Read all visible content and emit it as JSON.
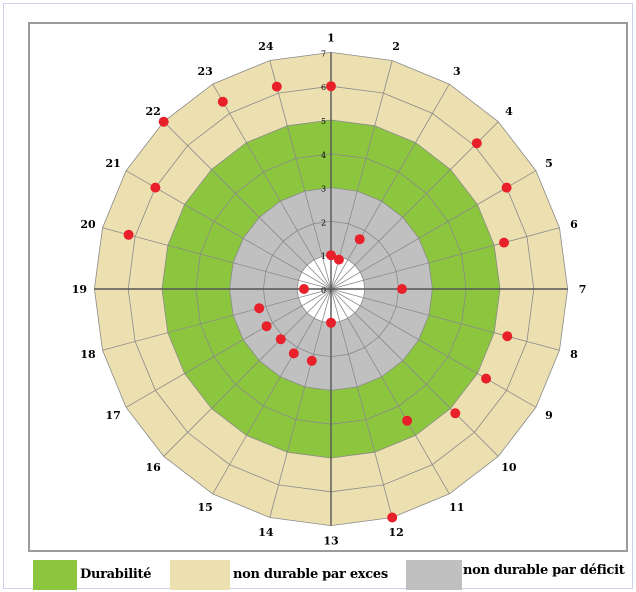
{
  "chart_data": {
    "type": "radar",
    "spokes": [
      "1",
      "2",
      "3",
      "4",
      "5",
      "6",
      "7",
      "8",
      "9",
      "10",
      "11",
      "12",
      "13",
      "14",
      "15",
      "16",
      "17",
      "18",
      "19",
      "20",
      "21",
      "22",
      "23",
      "24"
    ],
    "ring_ticks": [
      "0",
      "1",
      "2",
      "3",
      "4",
      "5",
      "6",
      "7"
    ],
    "rlim": [
      0,
      7
    ],
    "zones": [
      {
        "name": "non durable par déficit",
        "from": 0,
        "to": 3,
        "color": "#c0c0c0"
      },
      {
        "name": "Durabilité",
        "from": 3,
        "to": 5,
        "color": "#8cc63f"
      },
      {
        "name": "non durable par exces",
        "from": 5,
        "to": 7,
        "color": "#ede0b0"
      }
    ],
    "points": [
      {
        "spoke": "1",
        "value": 6.0
      },
      {
        "spoke": "1",
        "value": 1.0
      },
      {
        "spoke": "2",
        "value": 0.9
      },
      {
        "spoke": "3",
        "value": 1.7
      },
      {
        "spoke": "4",
        "value": 6.1
      },
      {
        "spoke": "5",
        "value": 6.0
      },
      {
        "spoke": "6",
        "value": 5.3
      },
      {
        "spoke": "7",
        "value": 2.1
      },
      {
        "spoke": "8",
        "value": 5.4
      },
      {
        "spoke": "9",
        "value": 5.3
      },
      {
        "spoke": "10",
        "value": 5.2
      },
      {
        "spoke": "11",
        "value": 4.5
      },
      {
        "spoke": "12",
        "value": 7.0
      },
      {
        "spoke": "13",
        "value": 1.0
      },
      {
        "spoke": "14",
        "value": 2.2
      },
      {
        "spoke": "15",
        "value": 2.2
      },
      {
        "spoke": "16",
        "value": 2.1
      },
      {
        "spoke": "17",
        "value": 2.2
      },
      {
        "spoke": "18",
        "value": 2.2
      },
      {
        "spoke": "19",
        "value": 0.8
      },
      {
        "spoke": "20",
        "value": 6.2
      },
      {
        "spoke": "21",
        "value": 6.0
      },
      {
        "spoke": "22",
        "value": 7.0
      },
      {
        "spoke": "23",
        "value": 6.4
      },
      {
        "spoke": "24",
        "value": 6.2
      }
    ],
    "point_color": "#e8202a",
    "legend": [
      {
        "label": "Durabilité",
        "color": "#8cc63f"
      },
      {
        "label": "non durable par exces",
        "color": "#ede0b0"
      },
      {
        "label": "non durable par déficit",
        "color": "#c0c0c0"
      }
    ],
    "legend_position": "bottom",
    "grid": true
  }
}
